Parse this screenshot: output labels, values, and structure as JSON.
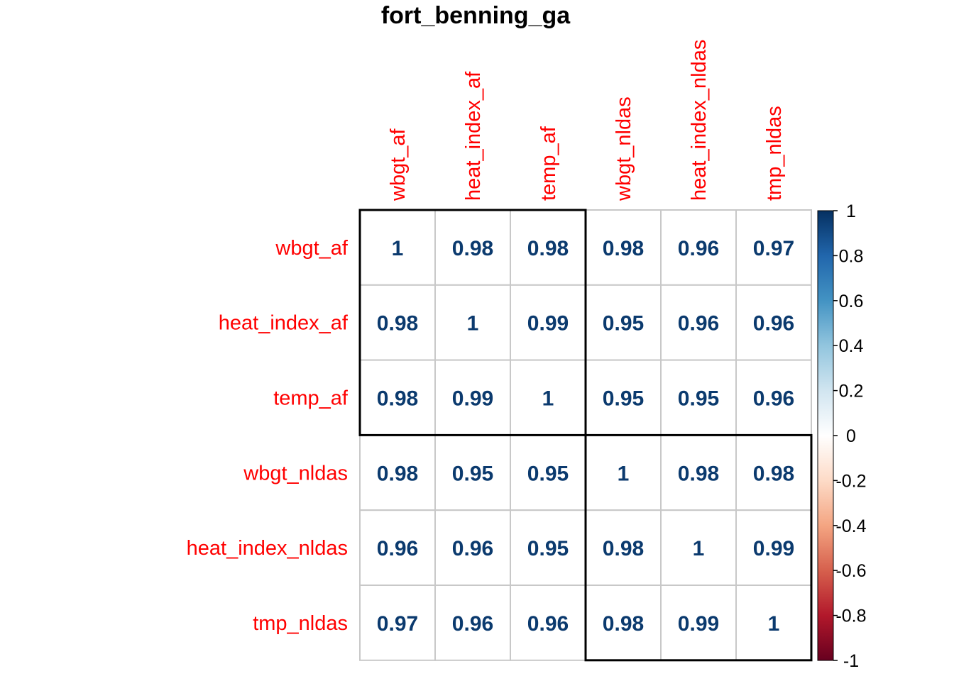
{
  "chart_data": {
    "type": "heatmap",
    "title": "fort_benning_ga",
    "rows": [
      "wbgt_af",
      "heat_index_af",
      "temp_af",
      "wbgt_nldas",
      "heat_index_nldas",
      "tmp_nldas"
    ],
    "columns": [
      "wbgt_af",
      "heat_index_af",
      "temp_af",
      "wbgt_nldas",
      "heat_index_nldas",
      "tmp_nldas"
    ],
    "values": [
      [
        1,
        0.98,
        0.98,
        0.98,
        0.96,
        0.97
      ],
      [
        0.98,
        1,
        0.99,
        0.95,
        0.96,
        0.96
      ],
      [
        0.98,
        0.99,
        1,
        0.95,
        0.95,
        0.96
      ],
      [
        0.98,
        0.95,
        0.95,
        1,
        0.98,
        0.98
      ],
      [
        0.96,
        0.96,
        0.95,
        0.98,
        1,
        0.99
      ],
      [
        0.97,
        0.96,
        0.96,
        0.98,
        0.99,
        1
      ]
    ],
    "value_labels": [
      [
        "1",
        "0.98",
        "0.98",
        "0.98",
        "0.96",
        "0.97"
      ],
      [
        "0.98",
        "1",
        "0.99",
        "0.95",
        "0.96",
        "0.96"
      ],
      [
        "0.98",
        "0.99",
        "1",
        "0.95",
        "0.95",
        "0.96"
      ],
      [
        "0.98",
        "0.95",
        "0.95",
        "1",
        "0.98",
        "0.98"
      ],
      [
        "0.96",
        "0.96",
        "0.95",
        "0.98",
        "1",
        "0.99"
      ],
      [
        "0.97",
        "0.96",
        "0.96",
        "0.98",
        "0.99",
        "1"
      ]
    ],
    "clusters": [
      {
        "start": 0,
        "end": 2
      },
      {
        "start": 3,
        "end": 5
      }
    ],
    "colorbar": {
      "range": [
        -1,
        1
      ],
      "ticks": [
        "1",
        "0.8",
        "0.6",
        "0.4",
        "0.2",
        "0",
        "-0.2",
        "-0.4",
        "-0.6",
        "-0.8",
        "-1"
      ]
    },
    "colors": {
      "label": "#ff0000",
      "value_text": "#0b3a6e",
      "grid": "#c8c8c8",
      "cluster_box": "#000000"
    }
  }
}
